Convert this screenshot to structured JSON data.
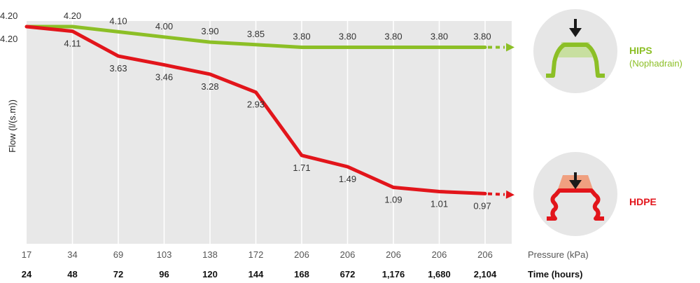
{
  "chart_data": {
    "type": "line",
    "title": "",
    "ylabel": "Flow (l/(s.m))",
    "pressure_axis_label": "Pressure (kPa)",
    "time_axis_label": "Time (hours)",
    "pressure_ticks": [
      "17",
      "34",
      "69",
      "103",
      "138",
      "172",
      "206",
      "206",
      "206",
      "206",
      "206"
    ],
    "time_ticks": [
      "24",
      "48",
      "72",
      "96",
      "120",
      "144",
      "168",
      "672",
      "1,176",
      "1,680",
      "2,104"
    ],
    "ylim": [
      0,
      4.2
    ],
    "grid": "vertical",
    "series": [
      {
        "name": "HIPS",
        "subtitle": "(Nophadrain)",
        "color": "#8cbf26",
        "values": [
          4.2,
          4.2,
          4.1,
          4.0,
          3.9,
          3.85,
          3.8,
          3.8,
          3.8,
          3.8,
          3.8
        ],
        "labels": [
          "4.20",
          "4.20",
          "4.10",
          "4.00",
          "3.90",
          "3.85",
          "3.80",
          "3.80",
          "3.80",
          "3.80",
          "3.80"
        ]
      },
      {
        "name": "HDPE",
        "color": "#e2151b",
        "values": [
          4.2,
          4.11,
          3.63,
          3.46,
          3.28,
          2.93,
          1.71,
          1.49,
          1.09,
          1.01,
          0.97
        ],
        "labels": [
          "4.20",
          "4.11",
          "3.63",
          "3.46",
          "3.28",
          "2.93",
          "1.71",
          "1.49",
          "1.09",
          "1.01",
          "0.97"
        ]
      }
    ],
    "legend_placement": "right"
  }
}
